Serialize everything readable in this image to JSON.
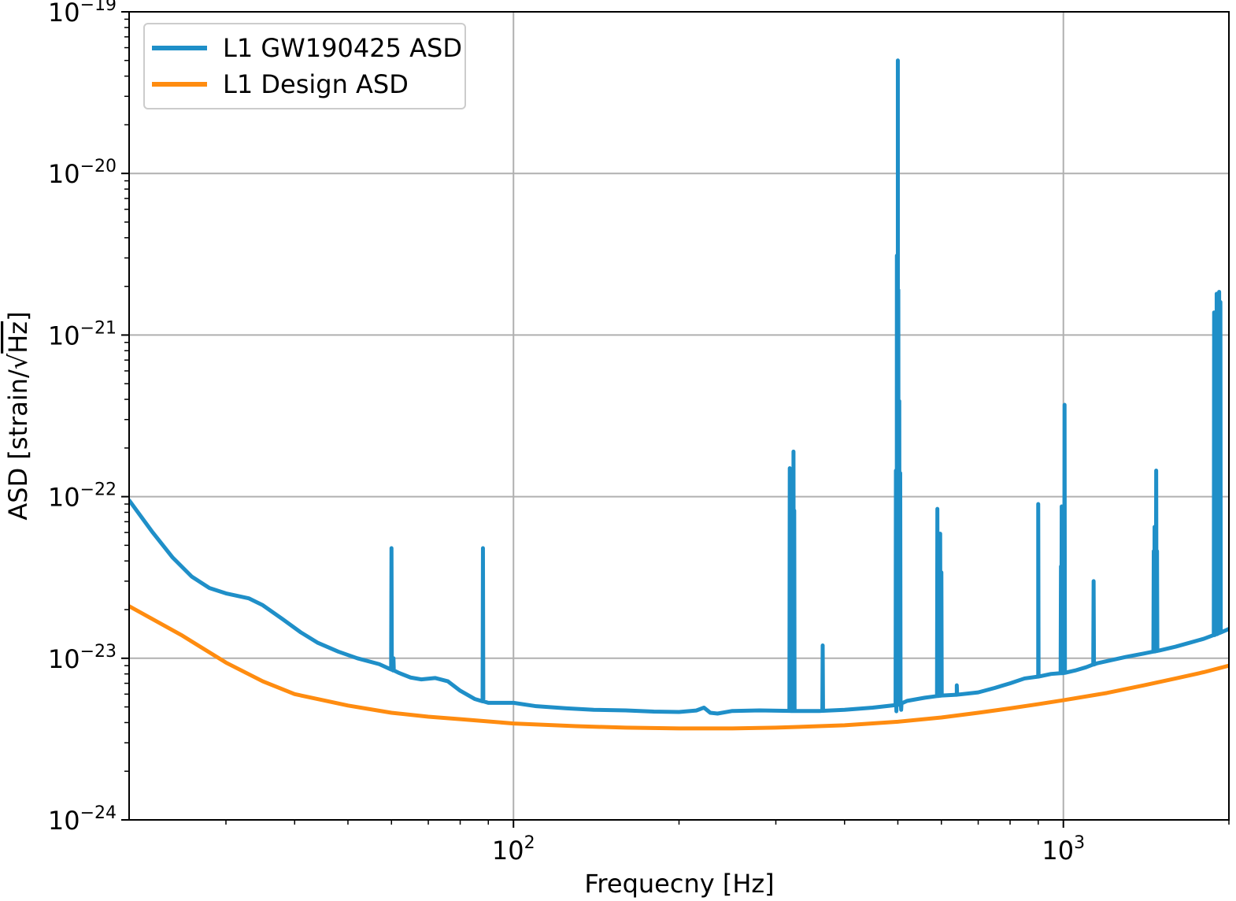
{
  "chart_data": {
    "type": "line",
    "xscale": "log",
    "yscale": "log",
    "xlim": [
      20,
      2000
    ],
    "ylim": [
      1e-24,
      1e-19
    ],
    "grid": true,
    "legend_position": "top-left",
    "xlabel": "Frequecny [Hz]",
    "ylabel_prefix": "ASD [strain/",
    "ylabel_root": "√",
    "ylabel_radicand": "Hz",
    "ylabel_suffix": "]",
    "xticks": [
      {
        "value": 100,
        "base": "10",
        "exp": "2"
      },
      {
        "value": 1000,
        "base": "10",
        "exp": "3"
      }
    ],
    "xminor_ticks": [
      30,
      40,
      50,
      60,
      70,
      80,
      90,
      200,
      300,
      400,
      500,
      600,
      700,
      800,
      900,
      2000
    ],
    "yticks": [
      {
        "value": 1e-19,
        "base": "10",
        "exp": "−19"
      },
      {
        "value": 1e-20,
        "base": "10",
        "exp": "−20"
      },
      {
        "value": 1e-21,
        "base": "10",
        "exp": "−21"
      },
      {
        "value": 1e-22,
        "base": "10",
        "exp": "−22"
      },
      {
        "value": 1e-23,
        "base": "10",
        "exp": "−23"
      },
      {
        "value": 1e-24,
        "base": "10",
        "exp": "−24"
      }
    ],
    "series": [
      {
        "name": "L1 GW190425 ASD",
        "color": "#1f8fc8",
        "points": [
          [
            20,
            9.5e-23
          ],
          [
            22,
            6.1e-23
          ],
          [
            24,
            4.2e-23
          ],
          [
            26,
            3.2e-23
          ],
          [
            28,
            2.72e-23
          ],
          [
            30,
            2.52e-23
          ],
          [
            33,
            2.35e-23
          ],
          [
            35,
            2.13e-23
          ],
          [
            38,
            1.75e-23
          ],
          [
            41,
            1.45e-23
          ],
          [
            44,
            1.25e-23
          ],
          [
            48,
            1.1e-23
          ],
          [
            52,
            1e-23
          ],
          [
            57,
            9.2e-24
          ],
          [
            62,
            8.1e-24
          ],
          [
            65,
            7.6e-24
          ],
          [
            68,
            7.4e-24
          ],
          [
            72,
            7.55e-24
          ],
          [
            76,
            7.2e-24
          ],
          [
            80,
            6.3e-24
          ],
          [
            85,
            5.6e-24
          ],
          [
            90,
            5.3e-24
          ],
          [
            100,
            5.3e-24
          ],
          [
            110,
            5.05e-24
          ],
          [
            125,
            4.9e-24
          ],
          [
            140,
            4.8e-24
          ],
          [
            160,
            4.76e-24
          ],
          [
            180,
            4.68e-24
          ],
          [
            200,
            4.65e-24
          ],
          [
            215,
            4.75e-24
          ],
          [
            222,
            4.95e-24
          ],
          [
            228,
            4.6e-24
          ],
          [
            235,
            4.55e-24
          ],
          [
            250,
            4.72e-24
          ],
          [
            280,
            4.76e-24
          ],
          [
            320,
            4.72e-24
          ],
          [
            360,
            4.72e-24
          ],
          [
            400,
            4.8e-24
          ],
          [
            450,
            4.95e-24
          ],
          [
            500,
            5.15e-24
          ],
          [
            520,
            5.45e-24
          ],
          [
            560,
            5.7e-24
          ],
          [
            600,
            5.88e-24
          ],
          [
            640,
            5.95e-24
          ],
          [
            700,
            6.15e-24
          ],
          [
            750,
            6.55e-24
          ],
          [
            800,
            7e-24
          ],
          [
            850,
            7.5e-24
          ],
          [
            900,
            7.7e-24
          ],
          [
            950,
            8e-24
          ],
          [
            1000,
            8.1e-24
          ],
          [
            1050,
            8.4e-24
          ],
          [
            1100,
            8.8e-24
          ],
          [
            1150,
            9.3e-24
          ],
          [
            1200,
            9.6e-24
          ],
          [
            1300,
            1.02e-23
          ],
          [
            1400,
            1.07e-23
          ],
          [
            1500,
            1.12e-23
          ],
          [
            1600,
            1.18e-23
          ],
          [
            1700,
            1.25e-23
          ],
          [
            1800,
            1.32e-23
          ],
          [
            1900,
            1.41e-23
          ],
          [
            2000,
            1.52e-23
          ]
        ],
        "spikes": [
          [
            60,
            4.8e-23
          ],
          [
            60.5,
            1e-23
          ],
          [
            88,
            4.8e-23
          ],
          [
            318,
            1.5e-22
          ],
          [
            320,
            6e-23
          ],
          [
            323,
            1.9e-22
          ],
          [
            324,
            8.2e-23
          ],
          [
            365,
            1.2e-23
          ],
          [
            496,
            1.45e-22
          ],
          [
            497,
            4.7e-24
          ],
          [
            498,
            3.1e-21
          ],
          [
            500,
            5e-20
          ],
          [
            501,
            1.9e-21
          ],
          [
            503,
            3.9e-22
          ],
          [
            505,
            1.4e-22
          ],
          [
            507,
            4.8e-24
          ],
          [
            590,
            8.4e-23
          ],
          [
            593,
            4.2e-23
          ],
          [
            597,
            5.9e-23
          ],
          [
            600,
            3.4e-23
          ],
          [
            640,
            6.8e-24
          ],
          [
            900,
            9e-23
          ],
          [
            990,
            3.7e-23
          ],
          [
            993,
            8.7e-23
          ],
          [
            1002,
            7.5e-23
          ],
          [
            1005,
            3.7e-22
          ],
          [
            1135,
            3e-23
          ],
          [
            1460,
            4.6e-23
          ],
          [
            1465,
            6.5e-23
          ],
          [
            1475,
            1.45e-22
          ],
          [
            1480,
            4.6e-23
          ],
          [
            1880,
            1.38e-21
          ],
          [
            1900,
            1.8e-21
          ],
          [
            1920,
            1.85e-21
          ],
          [
            1930,
            1.6e-21
          ]
        ]
      },
      {
        "name": "L1 Design ASD",
        "color": "#ff8c10",
        "points": [
          [
            20,
            2.1e-23
          ],
          [
            25,
            1.38e-23
          ],
          [
            30,
            9.4e-24
          ],
          [
            35,
            7.2e-24
          ],
          [
            40,
            6e-24
          ],
          [
            50,
            5.1e-24
          ],
          [
            60,
            4.6e-24
          ],
          [
            70,
            4.35e-24
          ],
          [
            80,
            4.2e-24
          ],
          [
            100,
            3.95e-24
          ],
          [
            130,
            3.8e-24
          ],
          [
            160,
            3.72e-24
          ],
          [
            200,
            3.68e-24
          ],
          [
            250,
            3.68e-24
          ],
          [
            300,
            3.72e-24
          ],
          [
            400,
            3.85e-24
          ],
          [
            500,
            4.05e-24
          ],
          [
            600,
            4.3e-24
          ],
          [
            700,
            4.6e-24
          ],
          [
            800,
            4.9e-24
          ],
          [
            900,
            5.2e-24
          ],
          [
            1000,
            5.5e-24
          ],
          [
            1200,
            6.1e-24
          ],
          [
            1400,
            6.8e-24
          ],
          [
            1600,
            7.5e-24
          ],
          [
            1800,
            8.2e-24
          ],
          [
            2000,
            9e-24
          ]
        ]
      }
    ]
  }
}
